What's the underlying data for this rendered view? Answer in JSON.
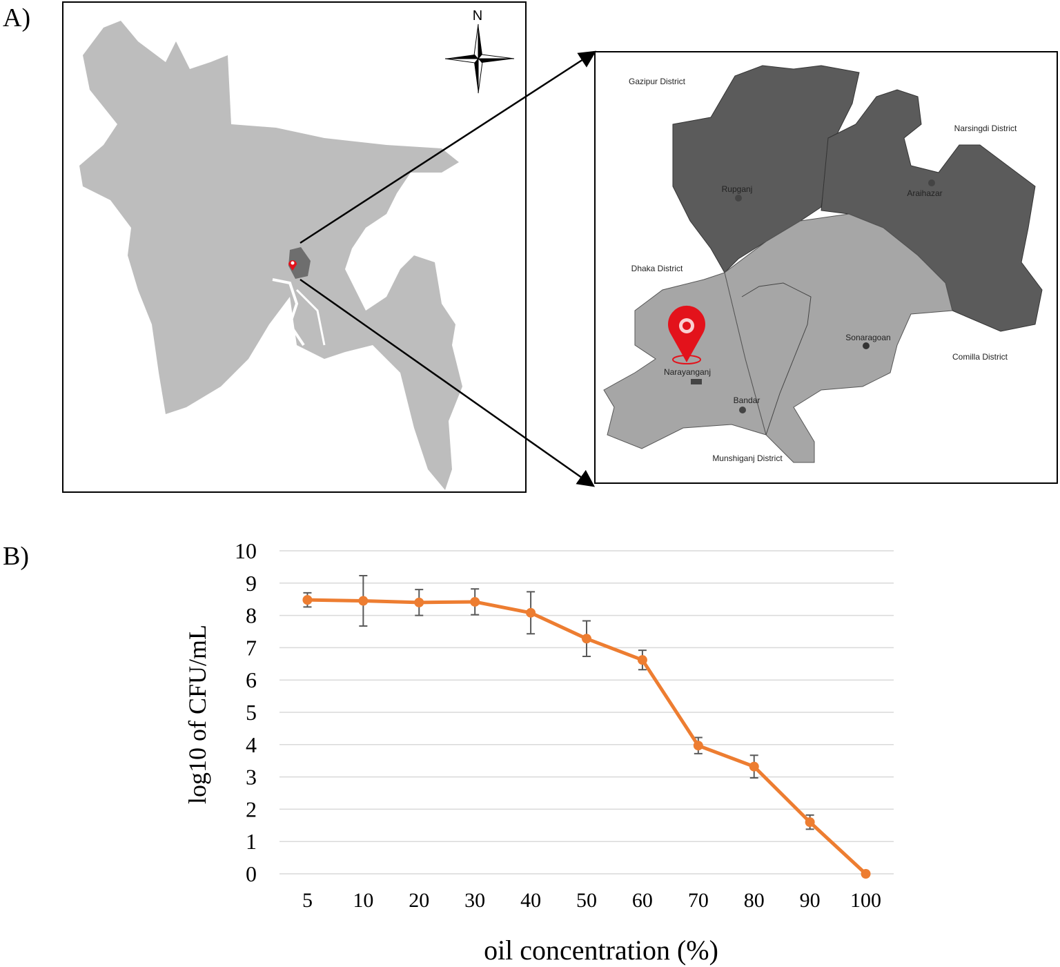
{
  "panel_labels": [
    "A)",
    "B)"
  ],
  "map": {
    "north": "N",
    "labels": [
      "Gazipur District",
      "Narsingdi District",
      "Rupganj",
      "Araihazar",
      "Dhaka District",
      "Sonaragoan",
      "Comilla District",
      "Narayanganj",
      "Bandar",
      "Munshiganj District"
    ]
  },
  "chart_data": {
    "type": "line",
    "categories": [
      "5",
      "10",
      "20",
      "30",
      "40",
      "50",
      "60",
      "70",
      "80",
      "90",
      "100"
    ],
    "values": [
      8.48,
      8.45,
      8.4,
      8.42,
      8.08,
      7.28,
      6.62,
      3.97,
      3.32,
      1.6,
      0
    ],
    "errors": [
      0.22,
      0.78,
      0.4,
      0.4,
      0.65,
      0.55,
      0.3,
      0.25,
      0.35,
      0.22,
      0
    ],
    "color": "#ed7d31",
    "ylim": [
      0,
      10
    ],
    "yticks": [
      0,
      1,
      2,
      3,
      4,
      5,
      6,
      7,
      8,
      9,
      10
    ],
    "grid": true,
    "xlabel": "oil concentration (%)",
    "ylabel": "log10 of CFU/mL"
  }
}
